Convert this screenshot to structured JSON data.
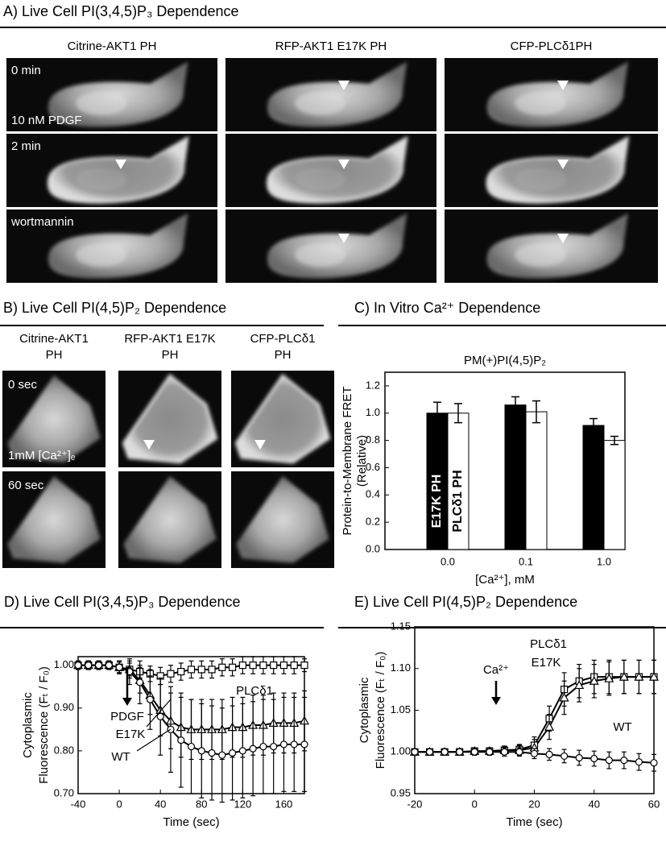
{
  "panel_a": {
    "title": "A) Live Cell PI(3,4,5)P₃ Dependence",
    "columns": [
      "Citrine-AKT1 PH",
      "RFP-AKT1 E17K PH",
      "CFP-PLCδ1PH"
    ],
    "labels": [
      "0 min",
      "10 nM PDGF",
      "2 min",
      "wortmannin"
    ]
  },
  "panel_b": {
    "title": "B) Live Cell PI(4,5)P₂ Dependence",
    "columns": [
      [
        "Citrine-AKT1",
        "PH"
      ],
      [
        "RFP-AKT1 E17K",
        "PH"
      ],
      [
        "CFP-PLCδ1",
        "PH"
      ]
    ],
    "labels": [
      "0 sec",
      "1mM [Ca²⁺]ₑ",
      "60 sec"
    ]
  },
  "chart_data": [
    {
      "type": "bar",
      "title": "C) In Vitro Ca²⁺ Dependence",
      "subtitle": "PM(+)PI(4,5)P₂",
      "x_label": "[Ca²⁺], mM",
      "y_label": [
        "Protein-to-Membrane FRET",
        "(Relative)"
      ],
      "categories": [
        "0.0",
        "0.1",
        "1.0"
      ],
      "series": [
        {
          "name": "E17K PH",
          "color": "#000000",
          "values": [
            1.0,
            1.06,
            0.91
          ],
          "errors": [
            0.08,
            0.06,
            0.05
          ]
        },
        {
          "name": "PLCδ1 PH",
          "color": "#ffffff",
          "values": [
            1.0,
            1.01,
            0.8
          ],
          "errors": [
            0.07,
            0.08,
            0.03
          ]
        }
      ],
      "ylim": [
        0,
        1.3
      ],
      "yticks": [
        {
          "value": 0,
          "label": "0.0"
        },
        {
          "value": 0.2,
          "label": "0.2"
        },
        {
          "value": 0.4,
          "label": "0.4"
        },
        {
          "value": 0.6,
          "label": "0.6"
        },
        {
          "value": 0.8,
          "label": "0.8"
        },
        {
          "value": 1,
          "label": "1.0"
        },
        {
          "value": 1.2,
          "label": "1.2"
        }
      ]
    },
    {
      "type": "line",
      "title": "D) Live Cell PI(3,4,5)P₃ Dependence",
      "y_label": [
        "Cytoplasmic",
        "Fluorescence (Fₜ / F₀)"
      ],
      "x_label": "Time (sec)",
      "annotation": "PDGF",
      "x": [
        -40,
        -30,
        -20,
        -10,
        0,
        10,
        20,
        30,
        40,
        50,
        60,
        70,
        80,
        90,
        100,
        110,
        120,
        130,
        140,
        150,
        160,
        170,
        180
      ],
      "series": [
        {
          "name": "PLCδ1",
          "marker": "square",
          "values": [
            1.0,
            1.0,
            1.0,
            1.0,
            0.995,
            0.99,
            0.985,
            0.98,
            0.975,
            0.98,
            0.985,
            0.99,
            0.99,
            0.99,
            0.995,
            0.995,
            1.0,
            1.0,
            1.0,
            1.0,
            1.0,
            1.0,
            1.0
          ],
          "errors": [
            0.01,
            0.01,
            0.01,
            0.01,
            0.012,
            0.015,
            0.015,
            0.018,
            0.02,
            0.02,
            0.02,
            0.02,
            0.02,
            0.02,
            0.02,
            0.02,
            0.02,
            0.02,
            0.02,
            0.02,
            0.02,
            0.02,
            0.015
          ]
        },
        {
          "name": "E17K",
          "marker": "triangle",
          "values": [
            1.0,
            1.0,
            1.0,
            1.0,
            0.995,
            0.99,
            0.965,
            0.93,
            0.895,
            0.87,
            0.855,
            0.85,
            0.85,
            0.85,
            0.85,
            0.855,
            0.855,
            0.86,
            0.86,
            0.865,
            0.865,
            0.865,
            0.87
          ],
          "errors": [
            0.01,
            0.01,
            0.01,
            0.01,
            0.015,
            0.02,
            0.03,
            0.045,
            0.06,
            0.065,
            0.07,
            0.07,
            0.07,
            0.07,
            0.07,
            0.07,
            0.07,
            0.07,
            0.07,
            0.07,
            0.07,
            0.07,
            0.07
          ]
        },
        {
          "name": "WT",
          "marker": "circle",
          "values": [
            1.0,
            1.0,
            1.0,
            1.0,
            0.995,
            0.985,
            0.96,
            0.92,
            0.88,
            0.85,
            0.825,
            0.81,
            0.8,
            0.795,
            0.79,
            0.795,
            0.8,
            0.805,
            0.81,
            0.81,
            0.815,
            0.815,
            0.815
          ],
          "errors": [
            0.01,
            0.01,
            0.01,
            0.01,
            0.015,
            0.03,
            0.05,
            0.07,
            0.09,
            0.1,
            0.11,
            0.11,
            0.11,
            0.11,
            0.11,
            0.11,
            0.11,
            0.11,
            0.11,
            0.11,
            0.11,
            0.11,
            0.11
          ]
        }
      ],
      "xlim": [
        -40,
        180
      ],
      "xticks": [
        -40,
        0,
        40,
        80,
        120,
        160
      ],
      "ylim": [
        0.7,
        1.02
      ],
      "yticks": [
        {
          "value": 0.7,
          "label": "0.70"
        },
        {
          "value": 0.8,
          "label": "0.80"
        },
        {
          "value": 0.9,
          "label": "0.90"
        },
        {
          "value": 1,
          "label": "1.00"
        }
      ]
    },
    {
      "type": "line",
      "title": "E) Live Cell PI(4,5)P₂ Dependence",
      "y_label": [
        "Cytoplasmic",
        "Fluorescence (Fₜ / F₀)"
      ],
      "x_label": "Time (sec)",
      "annotation": "Ca²⁺",
      "x": [
        -20,
        -15,
        -10,
        -5,
        0,
        5,
        10,
        15,
        20,
        25,
        30,
        35,
        40,
        45,
        50,
        55,
        60
      ],
      "series": [
        {
          "name": "PLCδ1",
          "marker": "square",
          "values": [
            1.0,
            1.0,
            1.0,
            1.0,
            1.001,
            1.001,
            1.002,
            1.003,
            1.008,
            1.04,
            1.075,
            1.085,
            1.09,
            1.09,
            1.09,
            1.09,
            1.09
          ],
          "errors": [
            0.003,
            0.003,
            0.003,
            0.004,
            0.004,
            0.004,
            0.005,
            0.006,
            0.01,
            0.015,
            0.02,
            0.02,
            0.02,
            0.02,
            0.02,
            0.02,
            0.02
          ]
        },
        {
          "name": "E17K",
          "marker": "triangle",
          "values": [
            1.0,
            1.0,
            1.0,
            1.0,
            1.001,
            1.001,
            1.002,
            1.002,
            1.005,
            1.03,
            1.065,
            1.08,
            1.085,
            1.088,
            1.09,
            1.09,
            1.09
          ],
          "errors": [
            0.003,
            0.003,
            0.003,
            0.004,
            0.004,
            0.004,
            0.005,
            0.006,
            0.01,
            0.015,
            0.02,
            0.02,
            0.02,
            0.02,
            0.02,
            0.02,
            0.02
          ]
        },
        {
          "name": "WT",
          "marker": "circle",
          "values": [
            1.0,
            1.0,
            1.0,
            1.0,
            1.0,
            1.0,
            1.0,
            1.0,
            0.998,
            0.997,
            0.995,
            0.993,
            0.992,
            0.99,
            0.99,
            0.988,
            0.987
          ],
          "errors": [
            0.003,
            0.003,
            0.003,
            0.004,
            0.004,
            0.004,
            0.005,
            0.005,
            0.006,
            0.007,
            0.008,
            0.009,
            0.009,
            0.01,
            0.01,
            0.01,
            0.01
          ]
        }
      ],
      "xlim": [
        -20,
        60
      ],
      "xticks": [
        -20,
        0,
        20,
        40,
        60
      ],
      "ylim": [
        0.95,
        1.15
      ],
      "yticks": [
        {
          "value": 0.95,
          "label": "0.95"
        },
        {
          "value": 1,
          "label": "1.00"
        },
        {
          "value": 1.05,
          "label": "1.05"
        },
        {
          "value": 1.1,
          "label": "1.10"
        },
        {
          "value": 1.15,
          "label": "1.15"
        }
      ]
    }
  ]
}
